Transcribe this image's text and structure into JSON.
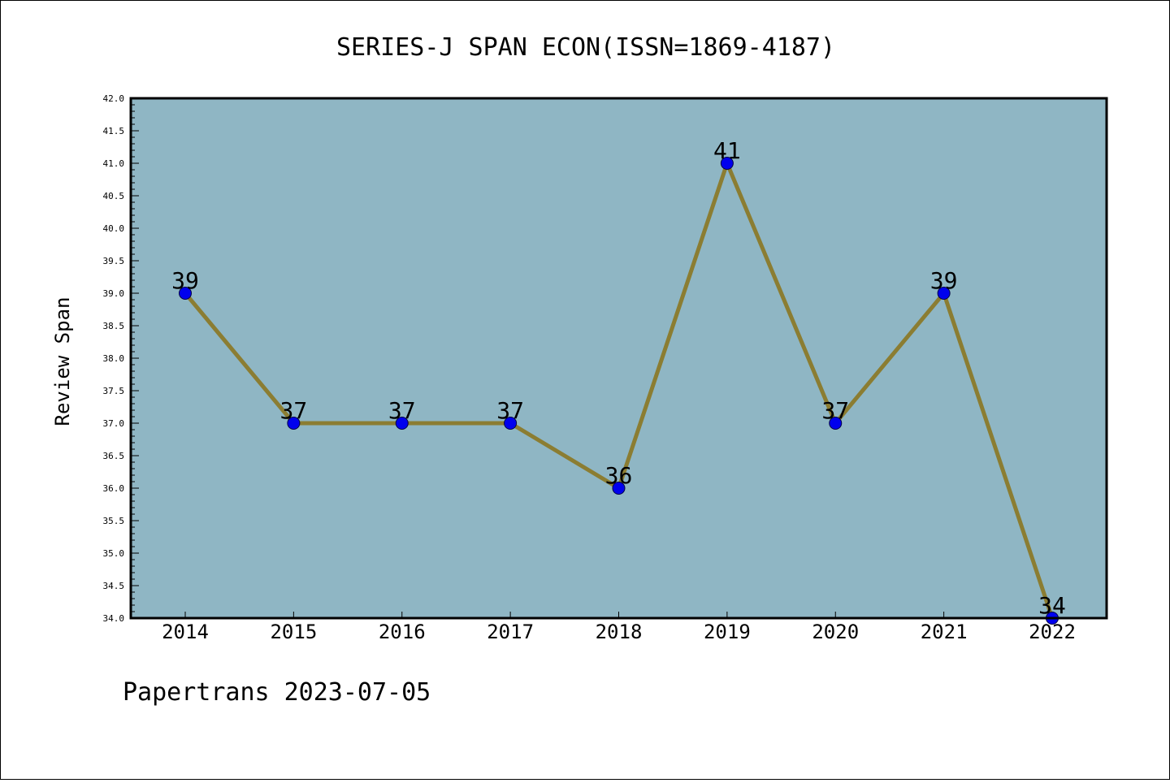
{
  "chart_data": {
    "type": "line",
    "title": "SERIES-J SPAN ECON(ISSN=1869-4187)",
    "xlabel": "",
    "ylabel": "Review Span",
    "x": [
      "2014",
      "2015",
      "2016",
      "2017",
      "2018",
      "2019",
      "2020",
      "2021",
      "2022"
    ],
    "series": [
      {
        "values": [
          39,
          37,
          37,
          37,
          36,
          41,
          37,
          39,
          34
        ],
        "labels": [
          "39",
          "37",
          "37",
          "37",
          "36",
          "41",
          "37",
          "39",
          "34"
        ]
      }
    ],
    "ylim": [
      34.0,
      42.0
    ],
    "yticks": [
      "34.0",
      "34.5",
      "35.0",
      "35.5",
      "36.0",
      "36.5",
      "37.0",
      "37.5",
      "38.0",
      "38.5",
      "39.0",
      "39.5",
      "40.0",
      "40.5",
      "41.0",
      "41.5",
      "42.0"
    ],
    "grid": false,
    "colors": {
      "plot_background": "#8fb6c4",
      "line": "#8b7d32",
      "marker": "#0000ee",
      "marker_edge": "#000044"
    }
  },
  "footer": {
    "source": "Papertrans",
    "date": "2023-07-05"
  }
}
